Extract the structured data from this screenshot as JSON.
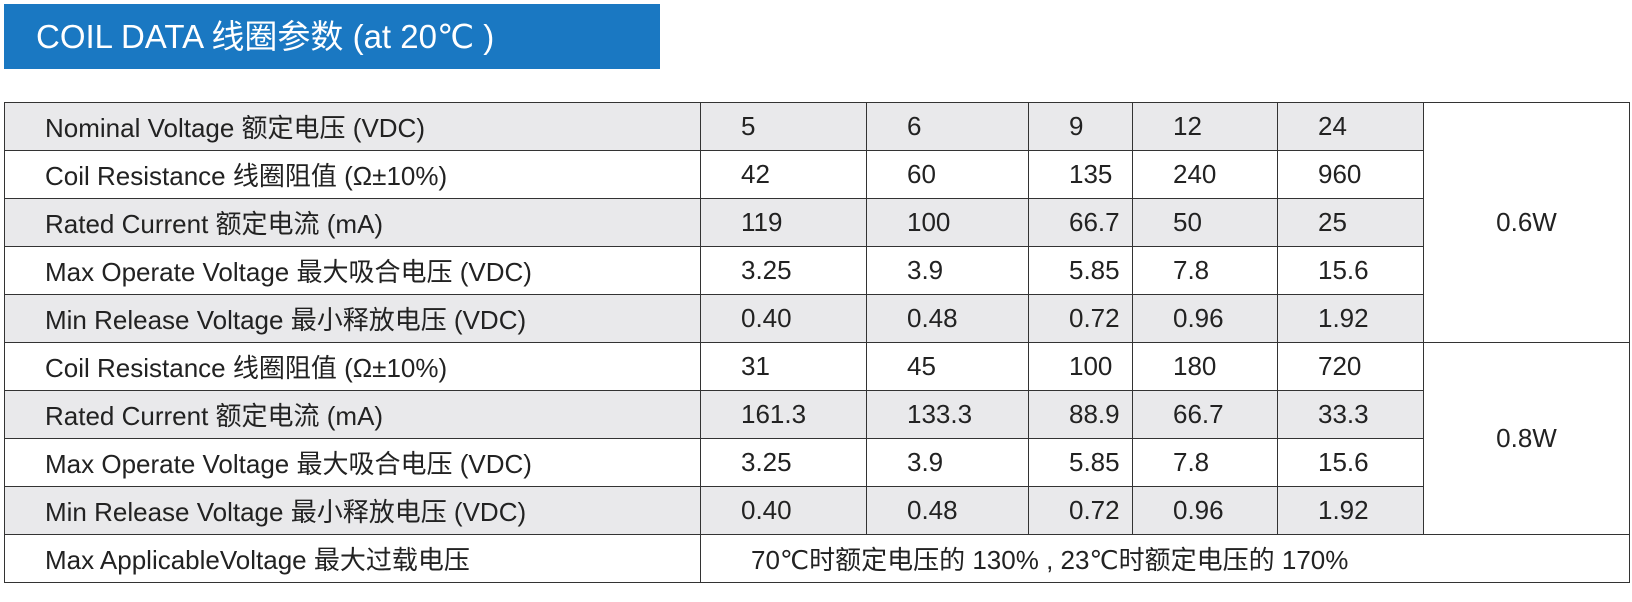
{
  "header": {
    "title": "COIL DATA 线圈参数 (at 20℃ )"
  },
  "table": {
    "rows": [
      [
        "Nominal Voltage 额定电压 (VDC)",
        "5",
        "6",
        "9",
        "12",
        "24",
        "0.6W"
      ],
      [
        "Coil Resistance 线圈阻值 (Ω±10%)",
        "42",
        "60",
        "135",
        "240",
        "960"
      ],
      [
        "Rated Current 额定电流 (mA)",
        "119",
        "100",
        "66.7",
        "50",
        "25"
      ],
      [
        "Max Operate Voltage 最大吸合电压 (VDC)",
        "3.25",
        "3.9",
        "5.85",
        "7.8",
        "15.6"
      ],
      [
        "Min Release Voltage 最小释放电压 (VDC)",
        "0.40",
        "0.48",
        "0.72",
        "0.96",
        "1.92"
      ],
      [
        "Coil Resistance 线圈阻值 (Ω±10%)",
        "31",
        "45",
        "100",
        "180",
        "720",
        "0.8W"
      ],
      [
        "Rated Current 额定电流 (mA)",
        "161.3",
        "133.3",
        "88.9",
        "66.7",
        "33.3"
      ],
      [
        "Max Operate Voltage 最大吸合电压 (VDC)",
        "3.25",
        "3.9",
        "5.85",
        "7.8",
        "15.6"
      ],
      [
        "Min Release Voltage 最小释放电压 (VDC)",
        "0.40",
        "0.48",
        "0.72",
        "0.96",
        "1.92"
      ],
      [
        "Max ApplicableVoltage 最大过载电压",
        "70℃时额定电压的 130% , 23℃时额定电压的 170%"
      ]
    ]
  }
}
